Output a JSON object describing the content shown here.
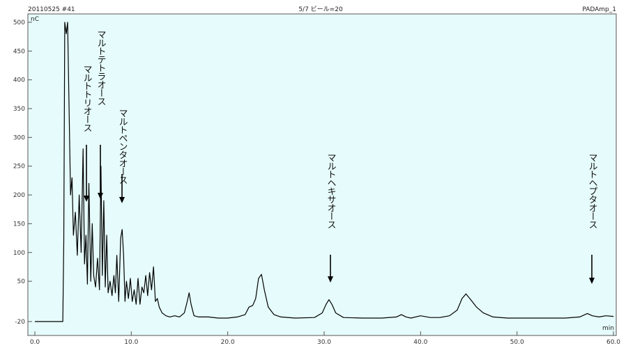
{
  "header": {
    "left": "20110525 #41",
    "center": "5/7 ビール=20",
    "right": "PADAmp_1",
    "yunit": "nC"
  },
  "colors": {
    "plot_bg": "#e6fbfb",
    "frame": "#555555",
    "trace": "#000000",
    "arrow": "#000000"
  },
  "chart_data": {
    "type": "line",
    "title": "5/7 ビール=20",
    "xlabel": "min",
    "ylabel": "nC",
    "xlim": [
      0,
      60
    ],
    "ylim": [
      -20,
      500
    ],
    "grid": false,
    "x_ticks": [
      0,
      10,
      20,
      30,
      40,
      50,
      60
    ],
    "x_tick_labels": [
      "0.0",
      "10.0",
      "20.0",
      "30.0",
      "40.0",
      "50.0",
      "60.0"
    ],
    "y_ticks": [
      -20,
      50,
      100,
      150,
      200,
      250,
      300,
      350,
      400,
      450,
      500
    ],
    "y_tick_labels": [
      "-20",
      "50",
      "100",
      "150",
      "200",
      "250",
      "300",
      "350",
      "400",
      "450",
      "500"
    ],
    "series": [
      {
        "x": [
          0,
          2.9,
          3.0,
          3.1,
          3.25,
          3.4,
          3.55,
          3.7,
          3.85,
          4.0,
          4.2,
          4.4,
          4.6,
          4.8,
          5.0,
          5.15,
          5.3,
          5.45,
          5.6,
          5.8,
          5.95,
          6.1,
          6.3,
          6.5,
          6.7,
          6.85,
          7.0,
          7.15,
          7.3,
          7.45,
          7.6,
          7.8,
          8.0,
          8.2,
          8.35,
          8.5,
          8.7,
          8.9,
          9.05,
          9.2,
          9.35,
          9.5,
          9.7,
          9.9,
          10.1,
          10.3,
          10.5,
          10.7,
          10.9,
          11.1,
          11.3,
          11.5,
          11.7,
          11.9,
          12.1,
          12.3,
          12.5,
          12.7,
          12.9,
          13.2,
          13.6,
          14.0,
          14.5,
          15.0,
          15.5,
          15.8,
          16.0,
          16.2,
          16.5,
          17.0,
          18.0,
          19.0,
          20.0,
          21.0,
          21.8,
          22.2,
          22.6,
          22.9,
          23.2,
          23.5,
          23.8,
          24.2,
          24.8,
          25.5,
          27.0,
          29.0,
          29.8,
          30.2,
          30.5,
          30.8,
          31.2,
          32.0,
          34.0,
          36.0,
          37.5,
          38.0,
          38.5,
          39.0,
          40.0,
          41.0,
          42.0,
          43.0,
          43.8,
          44.3,
          44.7,
          45.2,
          45.8,
          46.5,
          47.5,
          49.0,
          51.0,
          53.0,
          55.0,
          56.5,
          57.3,
          57.8,
          58.5,
          59.2,
          60.0
        ],
        "y": [
          -20,
          -20,
          120,
          500,
          480,
          500,
          350,
          200,
          230,
          130,
          170,
          95,
          200,
          100,
          280,
          80,
          130,
          45,
          220,
          50,
          150,
          60,
          40,
          90,
          35,
          250,
          60,
          190,
          40,
          130,
          30,
          50,
          25,
          60,
          30,
          95,
          15,
          125,
          140,
          95,
          15,
          50,
          20,
          55,
          15,
          35,
          10,
          55,
          10,
          40,
          30,
          60,
          25,
          65,
          35,
          75,
          15,
          20,
          5,
          -5,
          -10,
          -12,
          -10,
          -12,
          -5,
          15,
          30,
          10,
          -10,
          -12,
          -12,
          -14,
          -14,
          -12,
          -8,
          5,
          8,
          20,
          55,
          62,
          35,
          5,
          -8,
          -12,
          -14,
          -13,
          -5,
          10,
          18,
          10,
          -5,
          -13,
          -14,
          -14,
          -12,
          -8,
          -12,
          -14,
          -10,
          -13,
          -13,
          -10,
          0,
          20,
          28,
          18,
          5,
          -5,
          -12,
          -14,
          -14,
          -14,
          -14,
          -12,
          -6,
          -10,
          -12,
          -10,
          -11
        ]
      }
    ],
    "annotations": [
      {
        "text": "マルトトリオース",
        "x": 5.3
      },
      {
        "text": "マルトテトラオース",
        "x": 7.0
      },
      {
        "text": "マルトペンタオース",
        "x": 9.2
      },
      {
        "text": "マルトヘキサオース",
        "x": 31.0
      },
      {
        "text": "マルトヘプタオース",
        "x": 58.2
      }
    ]
  }
}
